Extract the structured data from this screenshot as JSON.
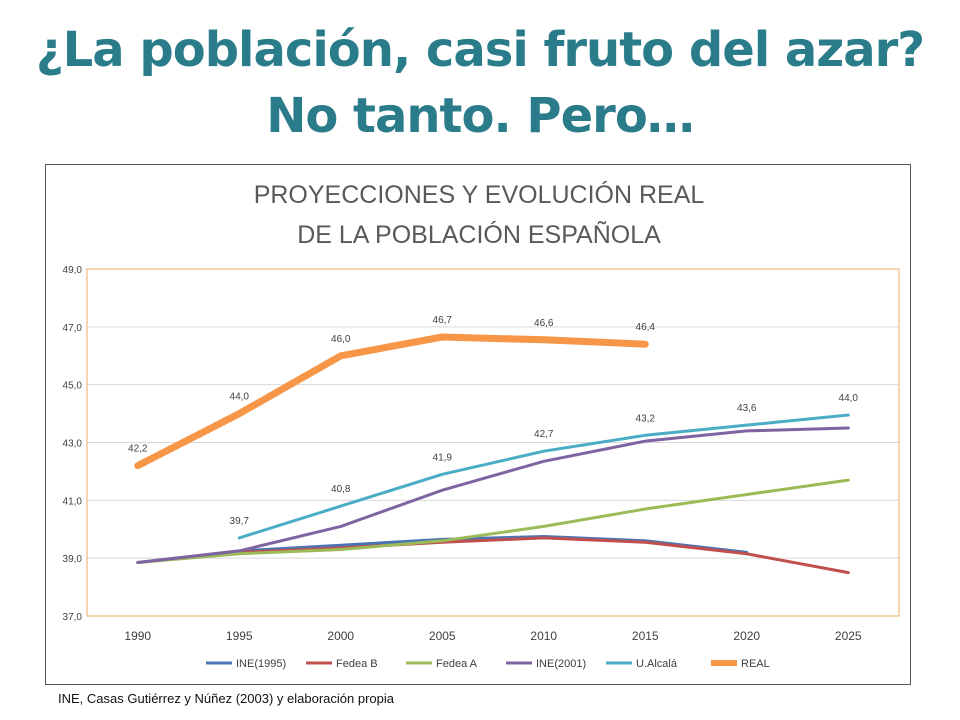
{
  "slide": {
    "title_line1": "¿La población, casi fruto del azar?",
    "title_line2": "No tanto. Pero…",
    "source": "INE, Casas Gutiérrez y Núñez (2003) y elaboración propia"
  },
  "chart_data": {
    "type": "line",
    "title": [
      "PROYECCIONES Y EVOLUCIÓN REAL",
      "DE LA POBLACIÓN ESPAÑOLA"
    ],
    "categories": [
      "1990",
      "1995",
      "2000",
      "2005",
      "2010",
      "2015",
      "2020",
      "2025"
    ],
    "ylim": [
      37.0,
      49.0
    ],
    "yticks": [
      "37,0",
      "39,0",
      "41,0",
      "43,0",
      "45,0",
      "47,0",
      "49,0"
    ],
    "grid": true,
    "legend_position": "bottom",
    "series": [
      {
        "name": "INE(1995)",
        "color": "#4a74b4",
        "width": 3,
        "values": [
          38.85,
          39.25,
          39.45,
          39.65,
          39.75,
          39.6,
          39.2,
          null
        ],
        "labels": []
      },
      {
        "name": "Fedea B",
        "color": "#c0504d",
        "width": 3,
        "values": [
          38.85,
          39.2,
          39.35,
          39.55,
          39.7,
          39.55,
          39.15,
          38.5
        ],
        "labels": []
      },
      {
        "name": "Fedea A",
        "color": "#9bbb59",
        "width": 3,
        "values": [
          38.85,
          39.15,
          39.3,
          39.6,
          40.1,
          40.7,
          41.2,
          41.7
        ],
        "labels": []
      },
      {
        "name": "INE(2001)",
        "color": "#8064a2",
        "width": 3,
        "values": [
          38.85,
          39.25,
          40.1,
          41.35,
          42.35,
          43.05,
          43.4,
          43.5
        ],
        "labels": []
      },
      {
        "name": "U.Alcalá",
        "color": "#4bacc6",
        "width": 3,
        "values": [
          null,
          39.7,
          40.8,
          41.9,
          42.7,
          43.25,
          43.6,
          43.95
        ],
        "labels": [
          null,
          "39,7",
          "40,8",
          "41,9",
          "42,7",
          "43,2",
          "43,6",
          "44,0"
        ]
      },
      {
        "name": "REAL",
        "color": "#f79646",
        "width": 7,
        "values": [
          42.2,
          44.0,
          46.0,
          46.65,
          46.55,
          46.4,
          null,
          null
        ],
        "labels": [
          "42,2",
          "44,0",
          "46,0",
          "46,7",
          "46,6",
          "46,4",
          null,
          null
        ]
      }
    ]
  }
}
